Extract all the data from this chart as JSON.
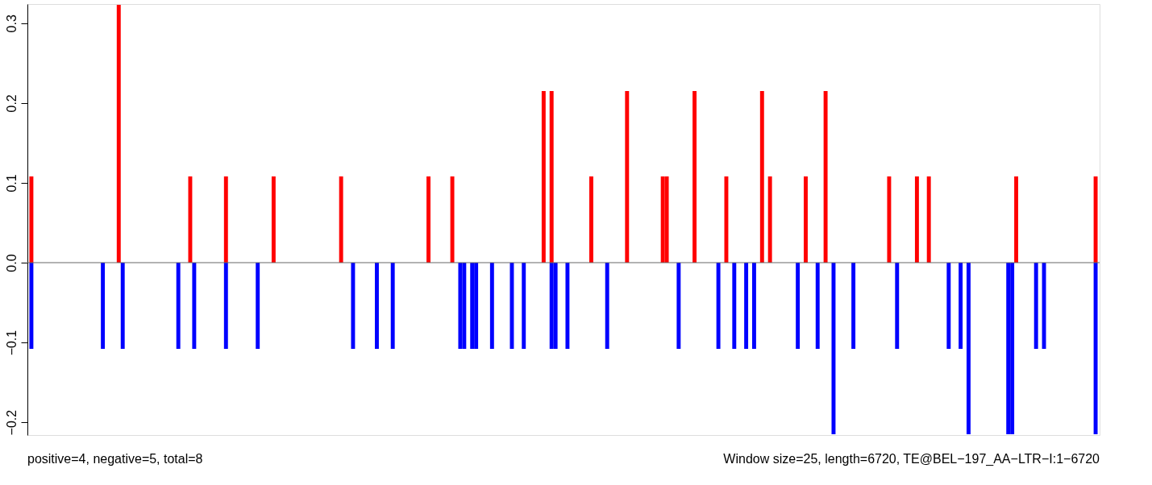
{
  "chart_data": {
    "type": "bar",
    "categories": [
      null,
      null,
      null,
      null,
      null,
      null,
      null,
      null,
      null,
      null,
      null,
      null,
      null,
      null,
      null,
      null,
      null,
      null,
      null,
      null,
      null,
      null,
      null,
      null,
      null,
      null,
      null,
      null,
      null,
      null,
      null,
      null,
      null,
      null,
      null,
      null,
      null,
      null,
      null,
      null,
      null,
      null,
      null,
      null,
      null,
      null,
      null,
      null,
      null,
      null,
      null,
      null,
      null,
      null,
      null,
      null,
      null,
      null,
      null,
      null,
      null,
      null,
      null,
      null,
      null,
      null,
      null,
      null,
      null,
      null,
      null,
      null,
      null,
      null,
      null,
      null,
      null,
      null,
      null,
      null,
      null,
      null,
      null,
      null,
      null,
      null,
      null,
      null,
      null,
      null,
      null,
      null,
      null,
      null,
      null,
      null,
      null,
      null,
      null,
      null,
      null,
      null,
      null,
      null,
      null,
      null,
      null,
      null,
      null,
      null,
      null,
      null,
      null,
      null,
      null,
      null,
      null,
      null,
      null,
      null,
      null,
      null,
      null,
      null,
      null,
      null,
      null,
      null,
      null,
      null,
      null,
      null,
      null,
      null,
      null,
      null,
      null,
      null,
      null,
      null,
      null,
      null,
      null,
      null,
      null,
      null,
      null,
      null,
      null,
      null,
      null,
      null,
      null,
      null,
      null,
      null,
      null,
      null,
      null,
      null,
      null,
      null,
      null,
      null,
      null,
      null,
      null,
      null,
      null,
      null,
      null,
      null,
      null,
      null,
      null,
      null,
      null,
      null,
      null,
      null,
      null,
      null,
      null,
      null,
      null,
      null,
      null,
      null,
      null,
      null,
      null,
      null,
      null,
      null,
      null,
      null,
      null,
      null,
      null,
      null,
      null,
      null,
      null,
      null,
      null,
      null,
      null,
      null,
      null,
      null,
      null,
      null,
      null,
      null,
      null,
      null,
      null,
      null,
      null,
      null,
      null,
      null,
      null,
      null,
      null,
      null,
      null,
      null,
      null,
      null,
      null,
      null,
      null,
      null,
      null,
      null,
      null,
      null,
      null,
      null,
      null,
      null,
      null,
      null,
      null,
      null,
      null,
      null,
      null,
      null,
      null,
      null,
      null,
      null,
      null,
      null,
      null,
      null,
      null,
      null,
      null,
      null,
      null,
      null,
      null,
      null,
      null,
      null,
      null
    ],
    "series": [
      {
        "color": "#ff0000",
        "values": [
          0.108,
          0,
          0,
          0,
          0,
          0,
          0,
          0,
          0,
          0,
          0,
          0,
          0,
          0,
          0,
          0,
          0,
          0,
          0,
          0,
          0,
          0,
          0.323,
          0,
          0,
          0,
          0,
          0,
          0,
          0,
          0,
          0,
          0,
          0,
          0,
          0,
          0,
          0,
          0,
          0,
          0.108,
          0,
          0,
          0,
          0,
          0,
          0,
          0,
          0,
          0.108,
          0,
          0,
          0,
          0,
          0,
          0,
          0,
          0,
          0,
          0,
          0,
          0.108,
          0,
          0,
          0,
          0,
          0,
          0,
          0,
          0,
          0,
          0,
          0,
          0,
          0,
          0,
          0,
          0,
          0.108,
          0,
          0,
          0,
          0,
          0,
          0,
          0,
          0,
          0,
          0,
          0,
          0,
          0,
          0,
          0,
          0,
          0,
          0,
          0,
          0,
          0,
          0.108,
          0,
          0,
          0,
          0,
          0,
          0.108,
          0,
          0,
          0,
          0,
          0,
          0,
          0,
          0,
          0,
          0,
          0,
          0,
          0,
          0,
          0,
          0,
          0,
          0,
          0,
          0,
          0,
          0,
          0.215,
          0,
          0.215,
          0,
          0,
          0,
          0,
          0,
          0,
          0,
          0,
          0,
          0.108,
          0,
          0,
          0,
          0,
          0,
          0,
          0,
          0,
          0.215,
          0,
          0,
          0,
          0,
          0,
          0,
          0,
          0,
          0.108,
          0.108,
          0,
          0,
          0,
          0,
          0,
          0,
          0.215,
          0,
          0,
          0,
          0,
          0,
          0,
          0,
          0.108,
          0,
          0,
          0,
          0,
          0,
          0,
          0,
          0,
          0.215,
          0,
          0.108,
          0,
          0,
          0,
          0,
          0,
          0,
          0,
          0,
          0.108,
          0,
          0,
          0,
          0,
          0.215,
          0,
          0,
          0,
          0,
          0,
          0,
          0,
          0,
          0,
          0,
          0,
          0,
          0,
          0,
          0,
          0.108,
          0,
          0,
          0,
          0,
          0,
          0,
          0.108,
          0,
          0,
          0.108,
          0,
          0,
          0,
          0,
          0,
          0,
          0,
          0,
          0,
          0,
          0,
          0,
          0,
          0,
          0,
          0,
          0,
          0,
          0,
          0,
          0,
          0.108,
          0,
          0,
          0,
          0,
          0,
          0,
          0,
          0,
          0,
          0,
          0,
          0,
          0,
          0,
          0,
          0,
          0,
          0,
          0,
          0.108
        ]
      },
      {
        "color": "#0000ff",
        "values": [
          -0.108,
          0,
          0,
          0,
          0,
          0,
          0,
          0,
          0,
          0,
          0,
          0,
          0,
          0,
          0,
          0,
          0,
          0,
          -0.108,
          0,
          0,
          0,
          0,
          -0.108,
          0,
          0,
          0,
          0,
          0,
          0,
          0,
          0,
          0,
          0,
          0,
          0,
          0,
          -0.108,
          0,
          0,
          0,
          -0.108,
          0,
          0,
          0,
          0,
          0,
          0,
          0,
          -0.108,
          0,
          0,
          0,
          0,
          0,
          0,
          0,
          -0.108,
          0,
          0,
          0,
          0,
          0,
          0,
          0,
          0,
          0,
          0,
          0,
          0,
          0,
          0,
          0,
          0,
          0,
          0,
          0,
          0,
          0,
          0,
          0,
          -0.108,
          0,
          0,
          0,
          0,
          0,
          -0.108,
          0,
          0,
          0,
          -0.108,
          0,
          0,
          0,
          0,
          0,
          0,
          0,
          0,
          0,
          0,
          0,
          0,
          0,
          0,
          0,
          0,
          -0.108,
          -0.108,
          0,
          -0.108,
          -0.108,
          0,
          0,
          0,
          -0.108,
          0,
          0,
          0,
          0,
          -0.108,
          0,
          0,
          -0.108,
          0,
          0,
          0,
          0,
          0,
          0,
          -0.108,
          -0.108,
          0,
          0,
          -0.108,
          0,
          0,
          0,
          0,
          0,
          0,
          0,
          0,
          0,
          -0.108,
          0,
          0,
          0,
          0,
          0,
          0,
          0,
          0,
          0,
          0,
          0,
          0,
          0,
          0,
          0,
          0,
          0,
          -0.108,
          0,
          0,
          0,
          0,
          0,
          0,
          0,
          0,
          0,
          -0.108,
          0,
          0,
          0,
          -0.108,
          0,
          0,
          -0.108,
          0,
          -0.108,
          0,
          0,
          0,
          0,
          0,
          0,
          0,
          0,
          0,
          0,
          -0.108,
          0,
          0,
          0,
          0,
          -0.108,
          0,
          0,
          0,
          -0.215,
          0,
          0,
          0,
          0,
          -0.108,
          0,
          0,
          0,
          0,
          0,
          0,
          0,
          0,
          0,
          0,
          -0.108,
          0,
          0,
          0,
          0,
          0,
          0,
          0,
          0,
          0,
          0,
          0,
          0,
          -0.108,
          0,
          0,
          -0.108,
          0,
          -0.215,
          0,
          0,
          0,
          0,
          0,
          0,
          0,
          0,
          0,
          -0.215,
          -0.215,
          0,
          0,
          0,
          0,
          0,
          -0.108,
          0,
          -0.108,
          0,
          0,
          0,
          0,
          0,
          0,
          0,
          0,
          0,
          0,
          0,
          0,
          -0.215
        ]
      }
    ],
    "ylim": [
      -0.216,
      0.324
    ],
    "yticks": [
      {
        "value": -0.2,
        "label": "−0.2"
      },
      {
        "value": -0.1,
        "label": "−0.1"
      },
      {
        "value": 0,
        "label": "0.0"
      },
      0.1,
      0.2,
      0.3
    ],
    "ref_lines": [
      {
        "axis": "y",
        "value": 0,
        "color": "#666666"
      }
    ],
    "tick_labels": "y",
    "annotations": [
      "positive=4, negative=5, total=8",
      "Window size=25, length=6720, TE@BEL−197_AA−LTR−I:1−6720"
    ]
  }
}
